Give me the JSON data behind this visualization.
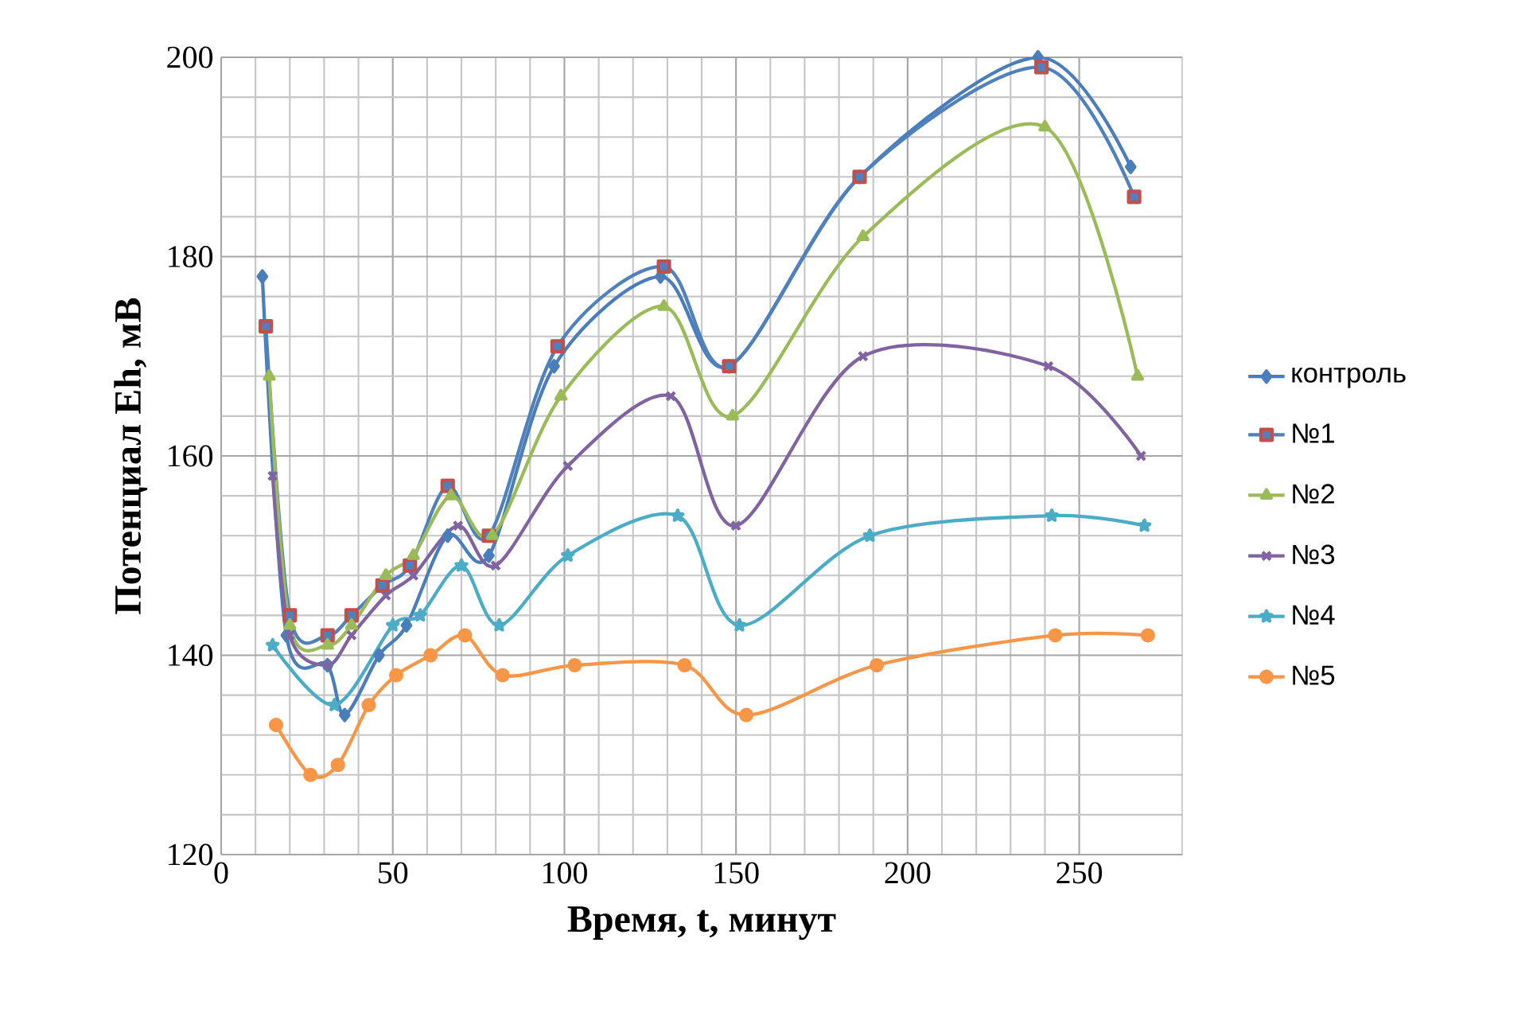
{
  "chart_data": {
    "type": "line",
    "xlabel": "Время, t, минут",
    "ylabel": "Потенциал Eh, мВ",
    "xlim": [
      0,
      280
    ],
    "xticks": [
      0,
      50,
      100,
      150,
      200,
      250
    ],
    "ylim": [
      120,
      200
    ],
    "yticks": [
      120,
      140,
      160,
      180,
      200
    ],
    "grid": true,
    "legend": "right",
    "line_style": "solid",
    "series": [
      {
        "name": "контроль",
        "color": "#4a7ebb",
        "marker": "diamond",
        "x": [
          12,
          19,
          31,
          36,
          46,
          54,
          66,
          78,
          97,
          128,
          148,
          186,
          238,
          265
        ],
        "values": [
          178,
          142,
          139,
          134,
          140,
          143,
          152,
          150,
          169,
          178,
          169,
          188,
          200,
          189
        ]
      },
      {
        "name": "№1",
        "color": "#4f81bd",
        "marker": "square",
        "x": [
          13,
          20,
          31,
          38,
          47,
          55,
          66,
          78,
          98,
          129,
          148,
          186,
          239,
          266
        ],
        "values": [
          173,
          144,
          142,
          144,
          147,
          149,
          157,
          152,
          171,
          179,
          169,
          188,
          199,
          186
        ]
      },
      {
        "name": "№2",
        "color": "#9bbb59",
        "marker": "triangle",
        "x": [
          14,
          20,
          31,
          38,
          48,
          56,
          67,
          79,
          99,
          129,
          149,
          187,
          240,
          267
        ],
        "values": [
          168,
          143,
          141,
          143,
          148,
          150,
          156,
          152,
          166,
          175,
          164,
          182,
          193,
          168
        ]
      },
      {
        "name": "№3",
        "color": "#8064a2",
        "marker": "cross",
        "x": [
          15,
          20,
          31,
          38,
          48,
          56,
          69,
          80,
          101,
          131,
          150,
          187,
          241,
          268
        ],
        "values": [
          158,
          142,
          139,
          142,
          146,
          148,
          153,
          149,
          159,
          166,
          153,
          170,
          169,
          160
        ]
      },
      {
        "name": "№4",
        "color": "#4bacc6",
        "marker": "star",
        "x": [
          15,
          33,
          50,
          58,
          70,
          81,
          101,
          133,
          151,
          189,
          242,
          269
        ],
        "values": [
          141,
          135,
          143,
          144,
          149,
          143,
          150,
          154,
          143,
          152,
          154,
          153
        ]
      },
      {
        "name": "№5",
        "color": "#f79646",
        "marker": "circle",
        "x": [
          16,
          26,
          34,
          43,
          51,
          61,
          71,
          82,
          103,
          135,
          153,
          191,
          243,
          270
        ],
        "values": [
          133,
          128,
          129,
          135,
          138,
          140,
          142,
          138,
          139,
          139,
          134,
          139,
          142,
          142
        ]
      }
    ]
  }
}
